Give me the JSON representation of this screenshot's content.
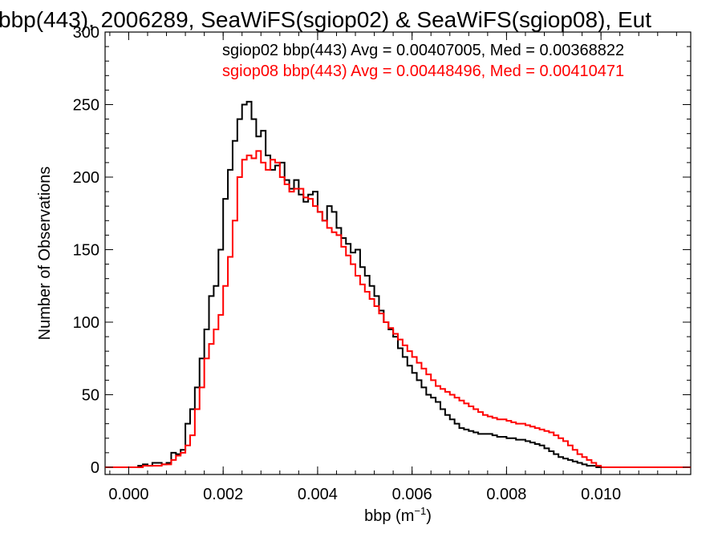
{
  "chart_data": {
    "type": "histogram",
    "title": "bbp(443), 2006289, SeaWiFS(sgiop02) & SeaWiFS(sgiop08), Eut",
    "xlabel_base": "bbp (m",
    "xlabel_exp": "−1",
    "xlabel_close": ")",
    "ylabel": "Number of Observations",
    "xlim": [
      -0.0005,
      0.0119
    ],
    "ylim": [
      -5,
      300
    ],
    "grid": false,
    "x_ticks": [
      "0.000",
      "0.002",
      "0.004",
      "0.006",
      "0.008",
      "0.010"
    ],
    "y_ticks": [
      "0",
      "50",
      "100",
      "150",
      "200",
      "250",
      "300"
    ],
    "annotations": [
      "sgiop02 bbp(443) Avg = 0.00407005, Med = 0.00368822",
      "sgiop08 bbp(443) Avg = 0.00448496, Med = 0.00410471"
    ],
    "bin_width": 0.0001,
    "series": [
      {
        "name": "sgiop02",
        "color": "#000000",
        "x_start": 0.0,
        "values": [
          0,
          0,
          1,
          2,
          1,
          3,
          3,
          2,
          3,
          10,
          9,
          12,
          30,
          40,
          55,
          75,
          95,
          118,
          125,
          150,
          185,
          205,
          225,
          240,
          250,
          252,
          240,
          228,
          232,
          215,
          205,
          208,
          210,
          198,
          192,
          198,
          188,
          183,
          188,
          190,
          176,
          170,
          180,
          176,
          165,
          158,
          154,
          148,
          150,
          138,
          132,
          125,
          118,
          108,
          100,
          95,
          90,
          82,
          76,
          70,
          65,
          60,
          55,
          50,
          48,
          45,
          40,
          36,
          33,
          30,
          27,
          26,
          25,
          24,
          23,
          23,
          23,
          22,
          21,
          21,
          20,
          20,
          19,
          19,
          18,
          17,
          16,
          15,
          13,
          11,
          9,
          7,
          6,
          5,
          4,
          3,
          2,
          1,
          1,
          0
        ]
      },
      {
        "name": "sgiop08",
        "color": "#ff0000",
        "x_start": 0.0,
        "values": [
          0,
          0,
          0,
          1,
          1,
          1,
          1,
          2,
          2,
          5,
          8,
          10,
          15,
          22,
          40,
          55,
          75,
          85,
          95,
          105,
          125,
          145,
          170,
          200,
          212,
          215,
          213,
          218,
          210,
          205,
          212,
          210,
          200,
          195,
          190,
          192,
          192,
          186,
          185,
          180,
          176,
          170,
          165,
          162,
          160,
          152,
          146,
          140,
          132,
          126,
          121,
          116,
          111,
          106,
          100,
          96,
          92,
          88,
          84,
          80,
          76,
          72,
          68,
          64,
          60,
          56,
          54,
          52,
          50,
          48,
          46,
          44,
          42,
          40,
          38,
          36,
          35,
          34,
          33,
          33,
          32,
          31,
          30,
          30,
          29,
          28,
          27,
          26,
          25,
          24,
          22,
          20,
          18,
          15,
          12,
          9,
          7,
          5,
          3,
          1
        ]
      }
    ]
  }
}
